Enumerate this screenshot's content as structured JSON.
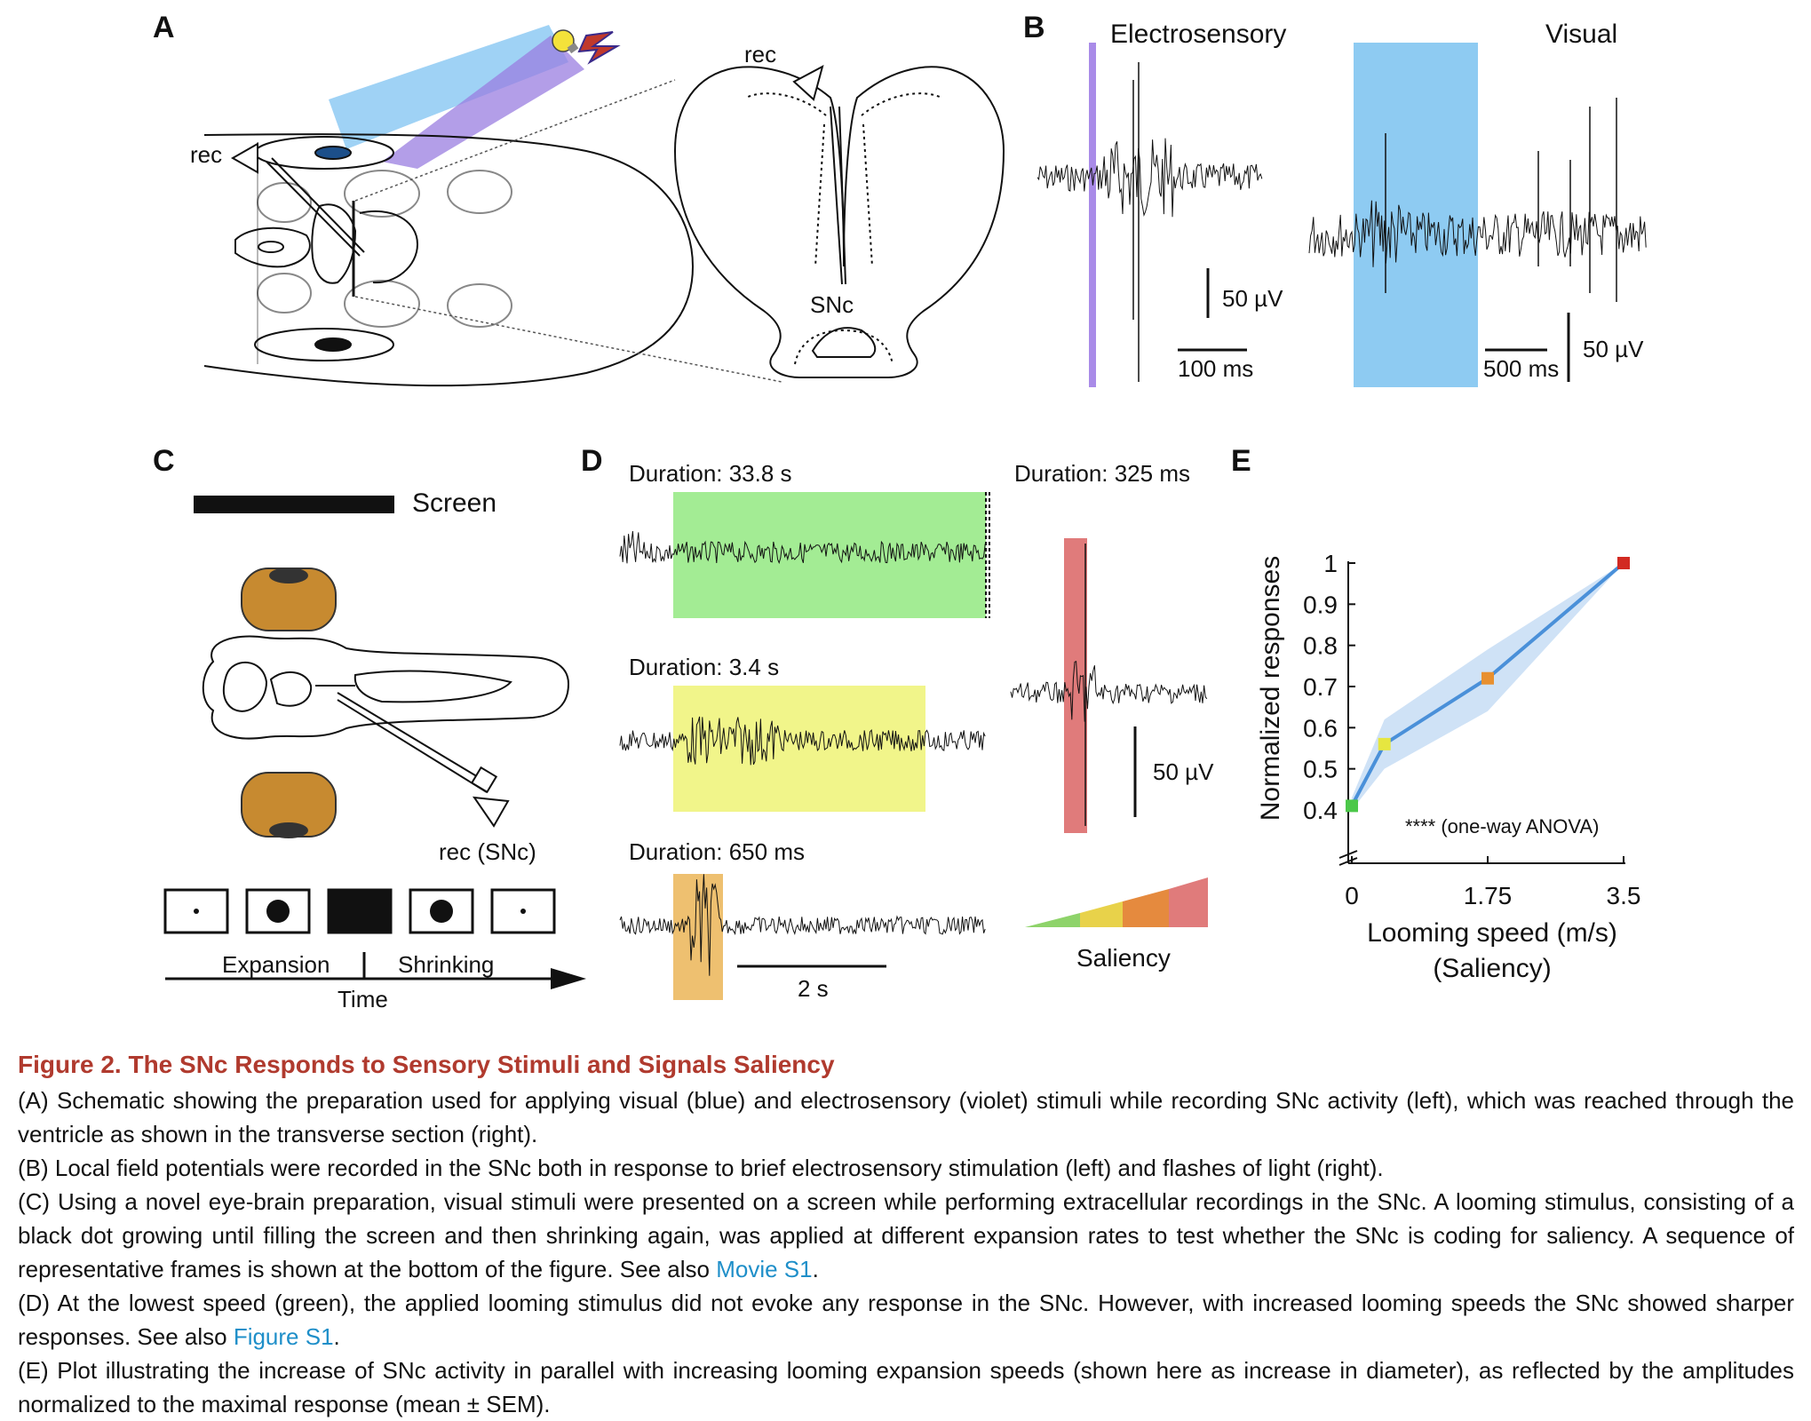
{
  "panels": {
    "a": "A",
    "b": "B",
    "c": "C",
    "d": "D",
    "e": "E"
  },
  "panel_a": {
    "rec_left": "rec",
    "rec_right": "rec",
    "snc": "SNc",
    "colors": {
      "visual_beam": "#7fc3f2",
      "electro_beam": "#9a7de0",
      "bulb": "#f4e23a"
    }
  },
  "panel_b": {
    "title_electro": "Electrosensory",
    "title_visual": "Visual",
    "scale_amp_1": "50 µV",
    "scale_time_1": "100 ms",
    "scale_time_2": "500 ms",
    "scale_amp_2": "50 µV",
    "colors": {
      "electro": "#a98be8",
      "visual": "#8ecbf2",
      "electro_title": "#7b4fd6",
      "visual_title": "#3a9be0"
    }
  },
  "panel_c": {
    "screen": "Screen",
    "rec_snc": "rec (SNc)",
    "expansion": "Expansion",
    "shrinking": "Shrinking",
    "time": "Time"
  },
  "panel_d": {
    "dur1": "Duration: 33.8 s",
    "dur2": "Duration: 3.4 s",
    "dur3": "Duration: 650 ms",
    "dur4": "Duration: 325 ms",
    "scale_time": "2 s",
    "scale_amp": "50 µV",
    "saliency": "Saliency",
    "colors": {
      "green": "#a3ec94",
      "yellow": "#f1f58a",
      "orange": "#eec070",
      "red": "#e07b7b"
    }
  },
  "chart_data": {
    "type": "line",
    "x": [
      0,
      0.42,
      1.75,
      3.5
    ],
    "xticks": [
      "0",
      "1.75",
      "3.5"
    ],
    "xlabel": "Looming speed (m/s)",
    "xlabel2": "(Saliency)",
    "ylabel": "Normalized responses",
    "yticks": [
      "0.4",
      "0.5",
      "0.6",
      "0.7",
      "0.8",
      "0.9",
      "1"
    ],
    "ylim": [
      0.4,
      1.0
    ],
    "xlim": [
      0,
      3.5
    ],
    "series": [
      {
        "values": [
          0.41,
          0.56,
          0.72,
          1.0
        ],
        "lower": [
          0.4,
          0.5,
          0.64,
          1.0
        ],
        "upper": [
          0.43,
          0.62,
          0.79,
          1.0
        ],
        "marker_colors": [
          "#4cc84a",
          "#e6e640",
          "#e8902f",
          "#d22a22"
        ]
      }
    ],
    "annotation": "**** (one-way ANOVA)",
    "colors": {
      "line": "#4a90d9",
      "band": "#cfe2f6"
    }
  },
  "caption": {
    "title": "Figure 2.  The SNc Responds to Sensory Stimuli and Signals Saliency",
    "p_a": "(A) Schematic showing the preparation used for applying visual (blue) and electrosensory (violet) stimuli while recording SNc activity (left), which was reached through the ventricle as shown in the transverse section (right).",
    "p_b": "(B) Local field potentials were recorded in the SNc both in response to brief electrosensory stimulation (left) and flashes of light (right).",
    "p_c": "(C) Using a novel eye-brain preparation, visual stimuli were presented on a screen while performing extracellular recordings in the SNc. A looming stimulus, consisting of a black dot growing until filling the screen and then shrinking again, was applied at different expansion rates to test whether the SNc is coding for saliency. A sequence of representative frames is shown at the bottom of the figure. See also ",
    "p_c_link": "Movie S1",
    "p_c_end": ".",
    "p_d": "(D) At the lowest speed (green), the applied looming stimulus did not evoke any response in the SNc. However, with increased looming speeds the SNc showed sharper responses. See also ",
    "p_d_link": "Figure S1",
    "p_d_end": ".",
    "p_e": "(E) Plot illustrating the increase of SNc activity in parallel with increasing looming expansion speeds (shown here as increase in diameter), as reflected by the amplitudes normalized to the maximal response (mean ± SEM)."
  }
}
